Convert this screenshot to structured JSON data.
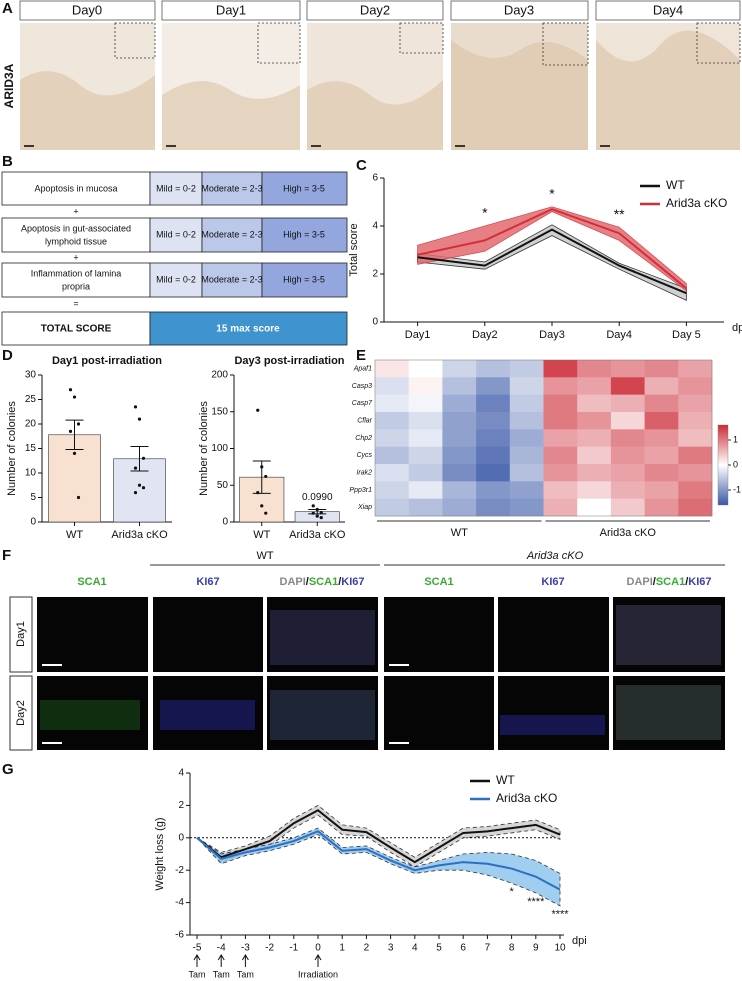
{
  "panel_labels": [
    "A",
    "B",
    "C",
    "D",
    "E",
    "F",
    "G"
  ],
  "panel_a": {
    "row_label": "ARID3A",
    "columns": [
      "Day0",
      "Day1",
      "Day2",
      "Day3",
      "Day4"
    ]
  },
  "panel_b": {
    "rows": [
      {
        "label": "Apoptosis in mucosa",
        "grades": [
          "Mild = 0-2",
          "Moderate = 2-3",
          "High = 3-5"
        ]
      },
      {
        "label": [
          "Apoptosis in gut-associated",
          "lymphoid tissue"
        ],
        "grades": [
          "Mild = 0-2",
          "Moderate = 2-3",
          "High = 3-5"
        ]
      },
      {
        "label": [
          "Inflammation of lamina",
          "propria"
        ],
        "grades": [
          "Mild = 0-2",
          "Moderate = 2-3",
          "High = 3-5"
        ]
      }
    ],
    "operators": [
      "+",
      "+",
      "="
    ],
    "total": {
      "label": "TOTAL SCORE",
      "value": "15 max score"
    }
  },
  "chart_data": [
    {
      "type": "line",
      "ylabel": "Total score",
      "xlabel": "dpi",
      "categories": [
        "Day1",
        "Day2",
        "Day3",
        "Day4",
        "Day 5"
      ],
      "ylim": [
        0,
        6
      ],
      "yticks": [
        0,
        2,
        4,
        6
      ],
      "legend": "upper right",
      "band_edge": "solid",
      "series": [
        {
          "name": "WT",
          "color": "#111111",
          "band_color": "#c8c8c8",
          "values": [
            2.7,
            2.35,
            3.85,
            2.35,
            1.2
          ],
          "lower": [
            2.5,
            2.2,
            3.6,
            2.2,
            0.9
          ],
          "upper": [
            2.85,
            2.5,
            4.05,
            2.45,
            1.4
          ]
        },
        {
          "name": "Arid3a cKO",
          "color": "#d0303a",
          "band_color": "#e36a6f",
          "values": [
            2.8,
            3.4,
            4.7,
            3.7,
            1.4
          ],
          "lower": [
            2.4,
            2.95,
            4.6,
            3.4,
            1.3
          ],
          "upper": [
            3.2,
            4.0,
            4.8,
            3.95,
            1.6
          ]
        }
      ],
      "annotations": [
        {
          "text": "*",
          "x": "Day2"
        },
        {
          "text": "*",
          "x": "Day3"
        },
        {
          "text": "**",
          "x": "Day4"
        }
      ]
    },
    {
      "type": "bar",
      "title": "Day1 post-irradiation",
      "ylabel": "Number of colonies",
      "categories": [
        "WT",
        "Arid3a cKO"
      ],
      "colors": [
        "#f9e1d1",
        "#e1e4f3"
      ],
      "values": [
        17.8,
        12.9
      ],
      "errors": [
        3,
        2.5
      ],
      "points": [
        [
          27,
          25.5,
          20,
          18.5,
          14,
          5
        ],
        [
          23.5,
          21,
          13,
          11,
          7.5,
          7,
          6
        ]
      ],
      "ylim": [
        0,
        30
      ],
      "yticks": [
        0,
        5,
        10,
        15,
        20,
        25,
        30
      ]
    },
    {
      "type": "bar",
      "title": "Day3 post-irradiation",
      "ylabel": "Number of colonies",
      "categories": [
        "WT",
        "Arid3a cKO"
      ],
      "colors": [
        "#f9e1d1",
        "#e1e4f3"
      ],
      "values": [
        61,
        14
      ],
      "errors": [
        22,
        3
      ],
      "points": [
        [
          152,
          75,
          62,
          40,
          22,
          12
        ],
        [
          22,
          17,
          13,
          12,
          8,
          6
        ]
      ],
      "ylim": [
        0,
        200
      ],
      "yticks": [
        0,
        50,
        100,
        150,
        200
      ],
      "annotations": [
        {
          "text": "0.0990",
          "x": "Arid3a cKO"
        }
      ]
    },
    {
      "type": "heatmap",
      "rows": [
        "Apaf1",
        "Casp3",
        "Casp7",
        "Cflar",
        "Chp2",
        "Cycs",
        "Irak2",
        "Ppp3r1",
        "Xiap"
      ],
      "groups": [
        "WT",
        "Arid3a cKO"
      ],
      "zlim": [
        -1.6,
        1.6
      ],
      "colorbar_ticks": [
        1,
        0,
        -1
      ],
      "colormap": [
        "#3a58a8",
        "#ffffff",
        "#cc2a36"
      ],
      "values": [
        [
          0.2,
          0.0,
          -0.4,
          -0.6,
          -0.5,
          1.4,
          0.9,
          0.8,
          0.9,
          0.7
        ],
        [
          -0.3,
          0.1,
          -0.6,
          -1.0,
          -0.4,
          0.8,
          0.7,
          1.4,
          0.6,
          0.8
        ],
        [
          -0.2,
          -0.1,
          -0.8,
          -1.2,
          -0.5,
          1.0,
          0.5,
          0.6,
          0.9,
          0.7
        ],
        [
          -0.5,
          -0.3,
          -0.9,
          -1.1,
          -0.6,
          1.0,
          0.8,
          0.3,
          1.2,
          0.6
        ],
        [
          -0.4,
          -0.2,
          -0.9,
          -1.2,
          -0.8,
          0.7,
          0.6,
          0.9,
          0.8,
          0.5
        ],
        [
          -0.6,
          -0.4,
          -1.0,
          -1.3,
          -0.7,
          0.9,
          0.4,
          0.8,
          0.7,
          1.0
        ],
        [
          -0.3,
          -0.5,
          -1.1,
          -1.4,
          -0.6,
          0.8,
          0.6,
          0.7,
          0.9,
          0.8
        ],
        [
          -0.4,
          -0.2,
          -0.7,
          -1.0,
          -0.9,
          0.5,
          0.3,
          0.6,
          0.7,
          1.0
        ],
        [
          -0.5,
          -0.6,
          -0.8,
          -1.1,
          -1.0,
          0.6,
          0.0,
          0.4,
          0.8,
          1.1
        ]
      ]
    },
    {
      "type": "line",
      "ylabel": "Weight loss (g)",
      "xlabel": "dpi",
      "x": [
        -5,
        -4,
        -3,
        -2,
        -1,
        0,
        1,
        2,
        3,
        4,
        5,
        6,
        7,
        8,
        9,
        10
      ],
      "xlim": [
        -5,
        10
      ],
      "xticks": [
        -5,
        -4,
        -3,
        -2,
        -1,
        0,
        1,
        2,
        3,
        4,
        5,
        6,
        7,
        8,
        9,
        10
      ],
      "ylim": [
        -6,
        4
      ],
      "yticks": [
        -6,
        -4,
        -2,
        0,
        2,
        4
      ],
      "zero_line": true,
      "legend": "upper right",
      "band_edge": "dashed",
      "series": [
        {
          "name": "WT",
          "color": "#111111",
          "band_color": "#cfcfcf",
          "values": [
            0,
            -1.2,
            -0.7,
            -0.2,
            0.9,
            1.7,
            0.5,
            0.35,
            -0.6,
            -1.5,
            -0.6,
            0.3,
            0.4,
            0.6,
            0.8,
            0.2
          ],
          "lower": [
            0,
            -1.5,
            -0.9,
            -0.5,
            0.6,
            1.4,
            0.2,
            0.1,
            -0.9,
            -1.8,
            -0.9,
            0.0,
            0.1,
            0.3,
            0.5,
            -0.1
          ],
          "upper": [
            0,
            -0.9,
            -0.5,
            0.1,
            1.2,
            2.0,
            0.8,
            0.6,
            -0.3,
            -1.2,
            -0.3,
            0.6,
            0.7,
            0.9,
            1.1,
            0.5
          ]
        },
        {
          "name": "Arid3a cKO",
          "color": "#2f6fc0",
          "band_color": "#8fc6ef",
          "values": [
            0,
            -1.3,
            -0.9,
            -0.6,
            -0.2,
            0.4,
            -0.8,
            -0.7,
            -1.4,
            -2.0,
            -1.7,
            -1.5,
            -1.6,
            -1.9,
            -2.4,
            -3.2
          ],
          "lower": [
            0,
            -1.6,
            -1.1,
            -0.8,
            -0.4,
            0.2,
            -1.0,
            -0.9,
            -1.6,
            -2.2,
            -2.0,
            -2.0,
            -2.3,
            -2.8,
            -3.4,
            -4.2
          ],
          "upper": [
            0,
            -1.0,
            -0.7,
            -0.4,
            0.0,
            0.6,
            -0.6,
            -0.5,
            -1.2,
            -1.8,
            -1.4,
            -1.0,
            -0.9,
            -1.0,
            -1.4,
            -2.2
          ]
        }
      ],
      "annotations": [
        {
          "text": "*",
          "x": 8
        },
        {
          "text": "****",
          "x": 9
        },
        {
          "text": "****",
          "x": 10
        }
      ],
      "events": [
        {
          "x": -5,
          "label": "Tam"
        },
        {
          "x": -4,
          "label": "Tam"
        },
        {
          "x": -3,
          "label": "Tam"
        },
        {
          "x": 0,
          "label": "Irradiation"
        }
      ]
    }
  ],
  "panel_f": {
    "groups": [
      "WT",
      "Arid3a cKO"
    ],
    "channels": [
      "SCA1",
      "KI67",
      [
        "DAPI",
        "/",
        "SCA1",
        "/",
        "KI67"
      ]
    ],
    "rows": [
      "Day1",
      "Day2"
    ]
  }
}
